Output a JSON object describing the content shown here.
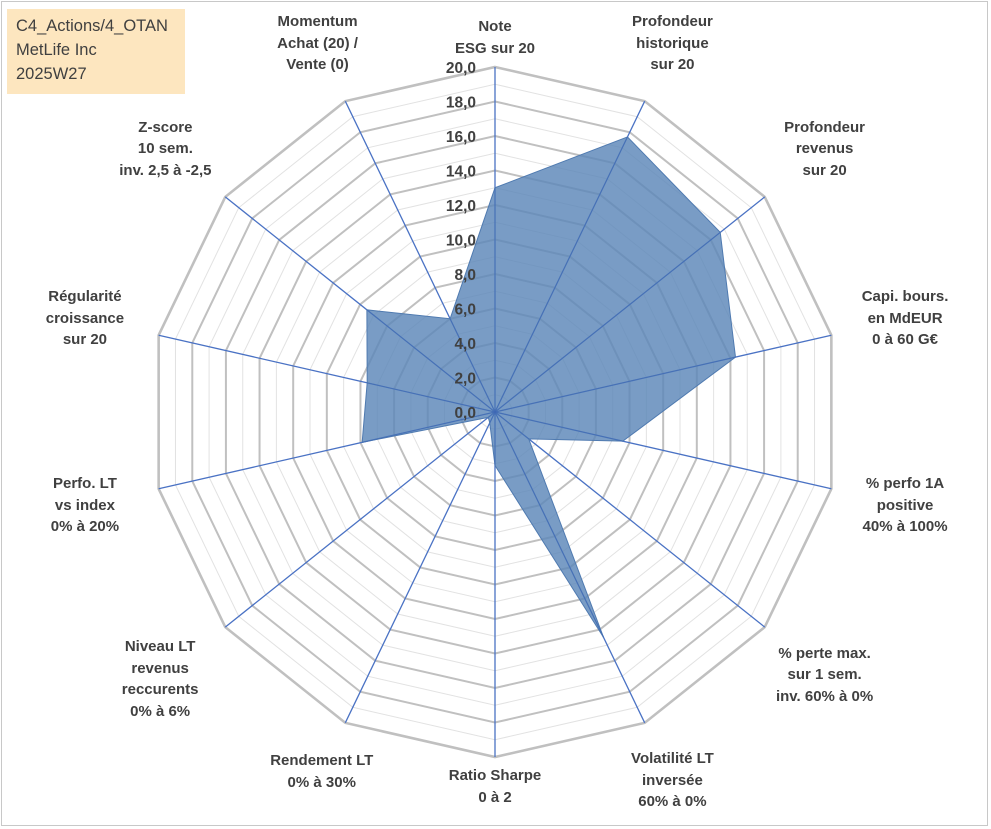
{
  "info": {
    "line1": "C4_Actions/4_OTAN",
    "line2": "MetLife Inc",
    "line3": "2025W27"
  },
  "colors": {
    "fill": "#5b86b8",
    "grid": "#c0c0c0",
    "spoke": "#4a72c4",
    "info_bg": "#fde6bf"
  },
  "chart_data": {
    "type": "radar",
    "ylim": [
      0,
      20
    ],
    "r_ticks": [
      "0,0",
      "2,0",
      "4,0",
      "6,0",
      "8,0",
      "10,0",
      "12,0",
      "14,0",
      "16,0",
      "18,0",
      "20,0"
    ],
    "axes": [
      {
        "lines": [
          "Note",
          "ESG sur 20"
        ],
        "value": 13.0
      },
      {
        "lines": [
          "Profondeur",
          "historique",
          "sur 20"
        ],
        "value": 17.7
      },
      {
        "lines": [
          "Profondeur",
          "revenus",
          "sur 20"
        ],
        "value": 16.7
      },
      {
        "lines": [
          "Capi. bours.",
          "en MdEUR",
          "0 à 60 G€"
        ],
        "value": 14.3
      },
      {
        "lines": [
          "% perfo 1A",
          "positive",
          "40% à 100%"
        ],
        "value": 7.6
      },
      {
        "lines": [
          "% perte max.",
          "sur 1 sem.",
          "inv. 60% à 0%"
        ],
        "value": 2.5
      },
      {
        "lines": [
          "Volatilité LT",
          "inversée",
          "60% à 0%"
        ],
        "value": 14.5
      },
      {
        "lines": [
          "Ratio Sharpe",
          "0 à 2"
        ],
        "value": 3.1
      },
      {
        "lines": [
          "Rendement LT",
          "0% à 30%"
        ],
        "value": 0.7
      },
      {
        "lines": [
          "Niveau LT",
          "revenus",
          "reccurents",
          "0% à 6%"
        ],
        "value": 0.5
      },
      {
        "lines": [
          "Perfo. LT",
          "vs index",
          "0% à 20%"
        ],
        "value": 7.9
      },
      {
        "lines": [
          "Régularité",
          "croissance",
          "sur 20"
        ],
        "value": 7.6
      },
      {
        "lines": [
          "Z-score",
          "10 sem.",
          "inv. 2,5 à -2,5"
        ],
        "value": 9.5
      },
      {
        "lines": [
          "Momentum",
          "Achat (20) /",
          "Vente (0)"
        ],
        "value": 6.0
      }
    ]
  }
}
